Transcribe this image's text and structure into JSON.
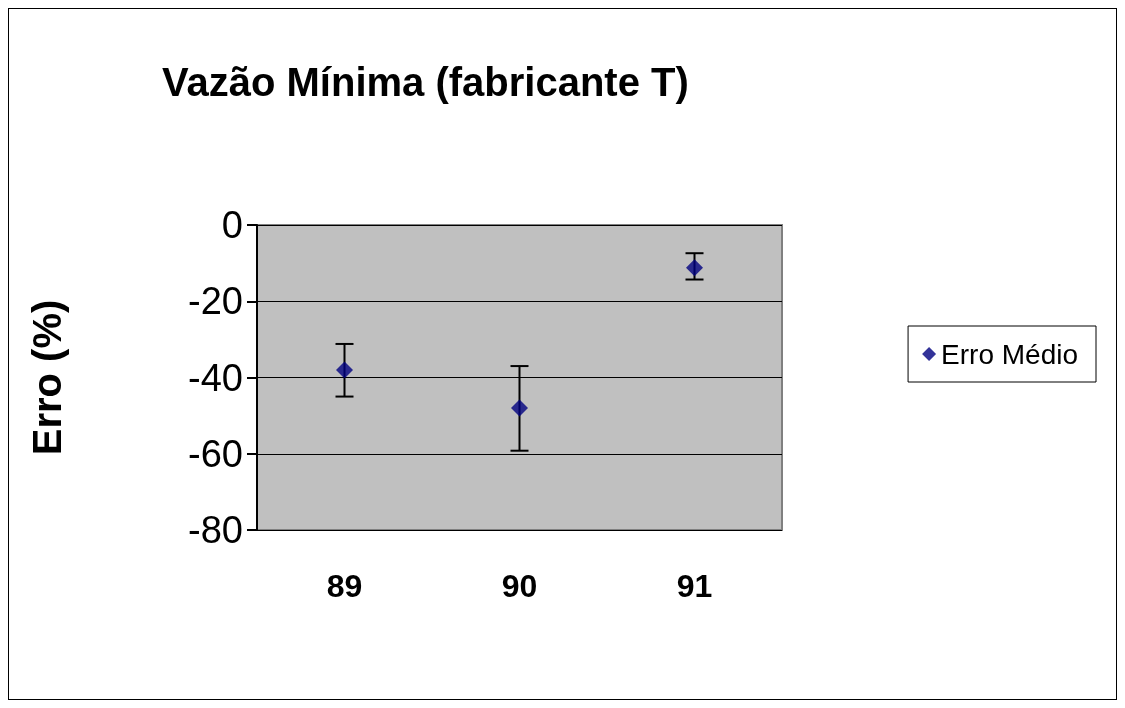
{
  "chart_data": {
    "type": "scatter",
    "title": "Vazão Mínima (fabricante T)",
    "ylabel": "Erro (%)",
    "categories": [
      "89",
      "90",
      "91"
    ],
    "series": [
      {
        "name": "Erro Médio",
        "color": "#000080",
        "values": [
          -38,
          -48,
          -11.2
        ],
        "errors": [
          [
            -45,
            -31.2
          ],
          [
            -59.2,
            -37
          ],
          [
            -14.3,
            -7.4
          ]
        ]
      }
    ],
    "ylim": [
      -80,
      0
    ],
    "yticks": [
      -80,
      -60,
      -40,
      -20,
      0
    ],
    "grid": "y",
    "legend": "right",
    "marker": "diamond"
  }
}
